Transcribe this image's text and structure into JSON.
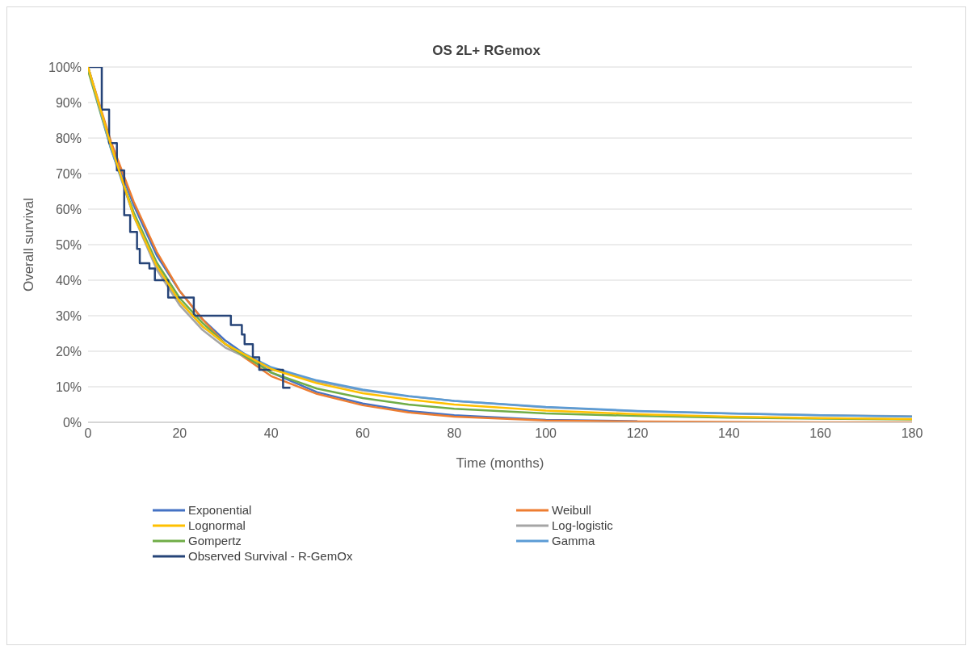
{
  "chart_data": {
    "type": "line",
    "title": "OS 2L+ RGemox",
    "xlabel": "Time (months)",
    "ylabel": "Overall survival",
    "xlim": [
      0,
      180
    ],
    "xticks": [
      0,
      20,
      40,
      60,
      80,
      100,
      120,
      140,
      160,
      180
    ],
    "ylim": [
      0,
      100
    ],
    "yticks": [
      {
        "value": 0,
        "label": "0%"
      },
      {
        "value": 10,
        "label": "10%"
      },
      {
        "value": 20,
        "label": "20%"
      },
      {
        "value": 30,
        "label": "30%"
      },
      {
        "value": 40,
        "label": "40%"
      },
      {
        "value": 50,
        "label": "50%"
      },
      {
        "value": 60,
        "label": "60%"
      },
      {
        "value": 70,
        "label": "70%"
      },
      {
        "value": 80,
        "label": "80%"
      },
      {
        "value": 90,
        "label": "90%"
      },
      {
        "value": 100,
        "label": "100%"
      }
    ],
    "grid": "y",
    "legend": "bottom",
    "marker": "none",
    "series": [
      {
        "name": "Exponential",
        "color": "#4472c4",
        "x": [
          0,
          5,
          10,
          15,
          20,
          25,
          30,
          40,
          50,
          60,
          70,
          80,
          100,
          120
        ],
        "values": [
          100,
          78,
          61,
          47,
          37,
          29,
          23,
          14,
          8.5,
          5.3,
          3.2,
          2,
          0.7,
          0.3
        ]
      },
      {
        "name": "Weibull",
        "color": "#ed7d31",
        "x": [
          0,
          5,
          10,
          15,
          20,
          25,
          30,
          40,
          50,
          60,
          70,
          80,
          100,
          120,
          140,
          160,
          180
        ],
        "values": [
          100,
          79,
          62,
          48,
          37,
          29,
          22,
          13,
          8,
          4.8,
          2.8,
          1.6,
          0.5,
          0.2,
          0.1,
          0,
          0
        ]
      },
      {
        "name": "Lognormal",
        "color": "#ffc000",
        "x": [
          0,
          5,
          10,
          15,
          20,
          25,
          30,
          40,
          50,
          60,
          70,
          80,
          100,
          120,
          140,
          160,
          180
        ],
        "values": [
          100,
          78,
          58,
          44,
          34,
          27,
          22,
          15,
          11,
          8.2,
          6.4,
          5,
          3.3,
          2.3,
          1.6,
          1.2,
          0.9
        ]
      },
      {
        "name": "Log-logistic",
        "color": "#a5a5a5",
        "x": [
          0,
          5,
          10,
          15,
          20,
          25,
          30,
          40,
          50,
          60,
          70,
          80,
          100,
          120,
          140,
          160,
          180
        ],
        "values": [
          100,
          78,
          58,
          43,
          33,
          26,
          21,
          15,
          11.5,
          9,
          7.3,
          6,
          4.2,
          3.1,
          2.5,
          2,
          1.7
        ]
      },
      {
        "name": "Gompertz",
        "color": "#70ad47",
        "x": [
          0,
          5,
          10,
          15,
          20,
          25,
          30,
          40,
          50,
          60,
          70,
          80,
          100,
          120,
          140,
          160,
          180
        ],
        "values": [
          99,
          77,
          59,
          45,
          35,
          28,
          22,
          14,
          9.5,
          6.8,
          5,
          3.8,
          2.5,
          1.8,
          1.3,
          1,
          0.8
        ]
      },
      {
        "name": "Gamma",
        "color": "#5b9bd5",
        "x": [
          0,
          5,
          10,
          15,
          20,
          25,
          30,
          40,
          50,
          60,
          70,
          80,
          100,
          120,
          140,
          160,
          180
        ],
        "values": [
          100,
          77,
          58,
          44,
          34,
          27,
          22,
          15.5,
          11.8,
          9.2,
          7.4,
          6,
          4.3,
          3.2,
          2.5,
          2,
          1.6
        ]
      },
      {
        "name": "Observed Survival - R-GemOx",
        "color": "#264478",
        "type": "step",
        "x": [
          0,
          0.5,
          3,
          4.6,
          6.3,
          7.9,
          9.2,
          10.7,
          11.3,
          13.4,
          14.6,
          17.5,
          23.1,
          31.2,
          33.6,
          34.2,
          36,
          37.4,
          42.6,
          44.2
        ],
        "values": [
          100,
          100,
          88,
          78.6,
          70.9,
          58.3,
          53.6,
          48.8,
          44.8,
          43.3,
          40,
          35.1,
          30,
          27.4,
          24.7,
          22,
          18.3,
          14.8,
          9.7,
          9.7
        ]
      }
    ]
  }
}
